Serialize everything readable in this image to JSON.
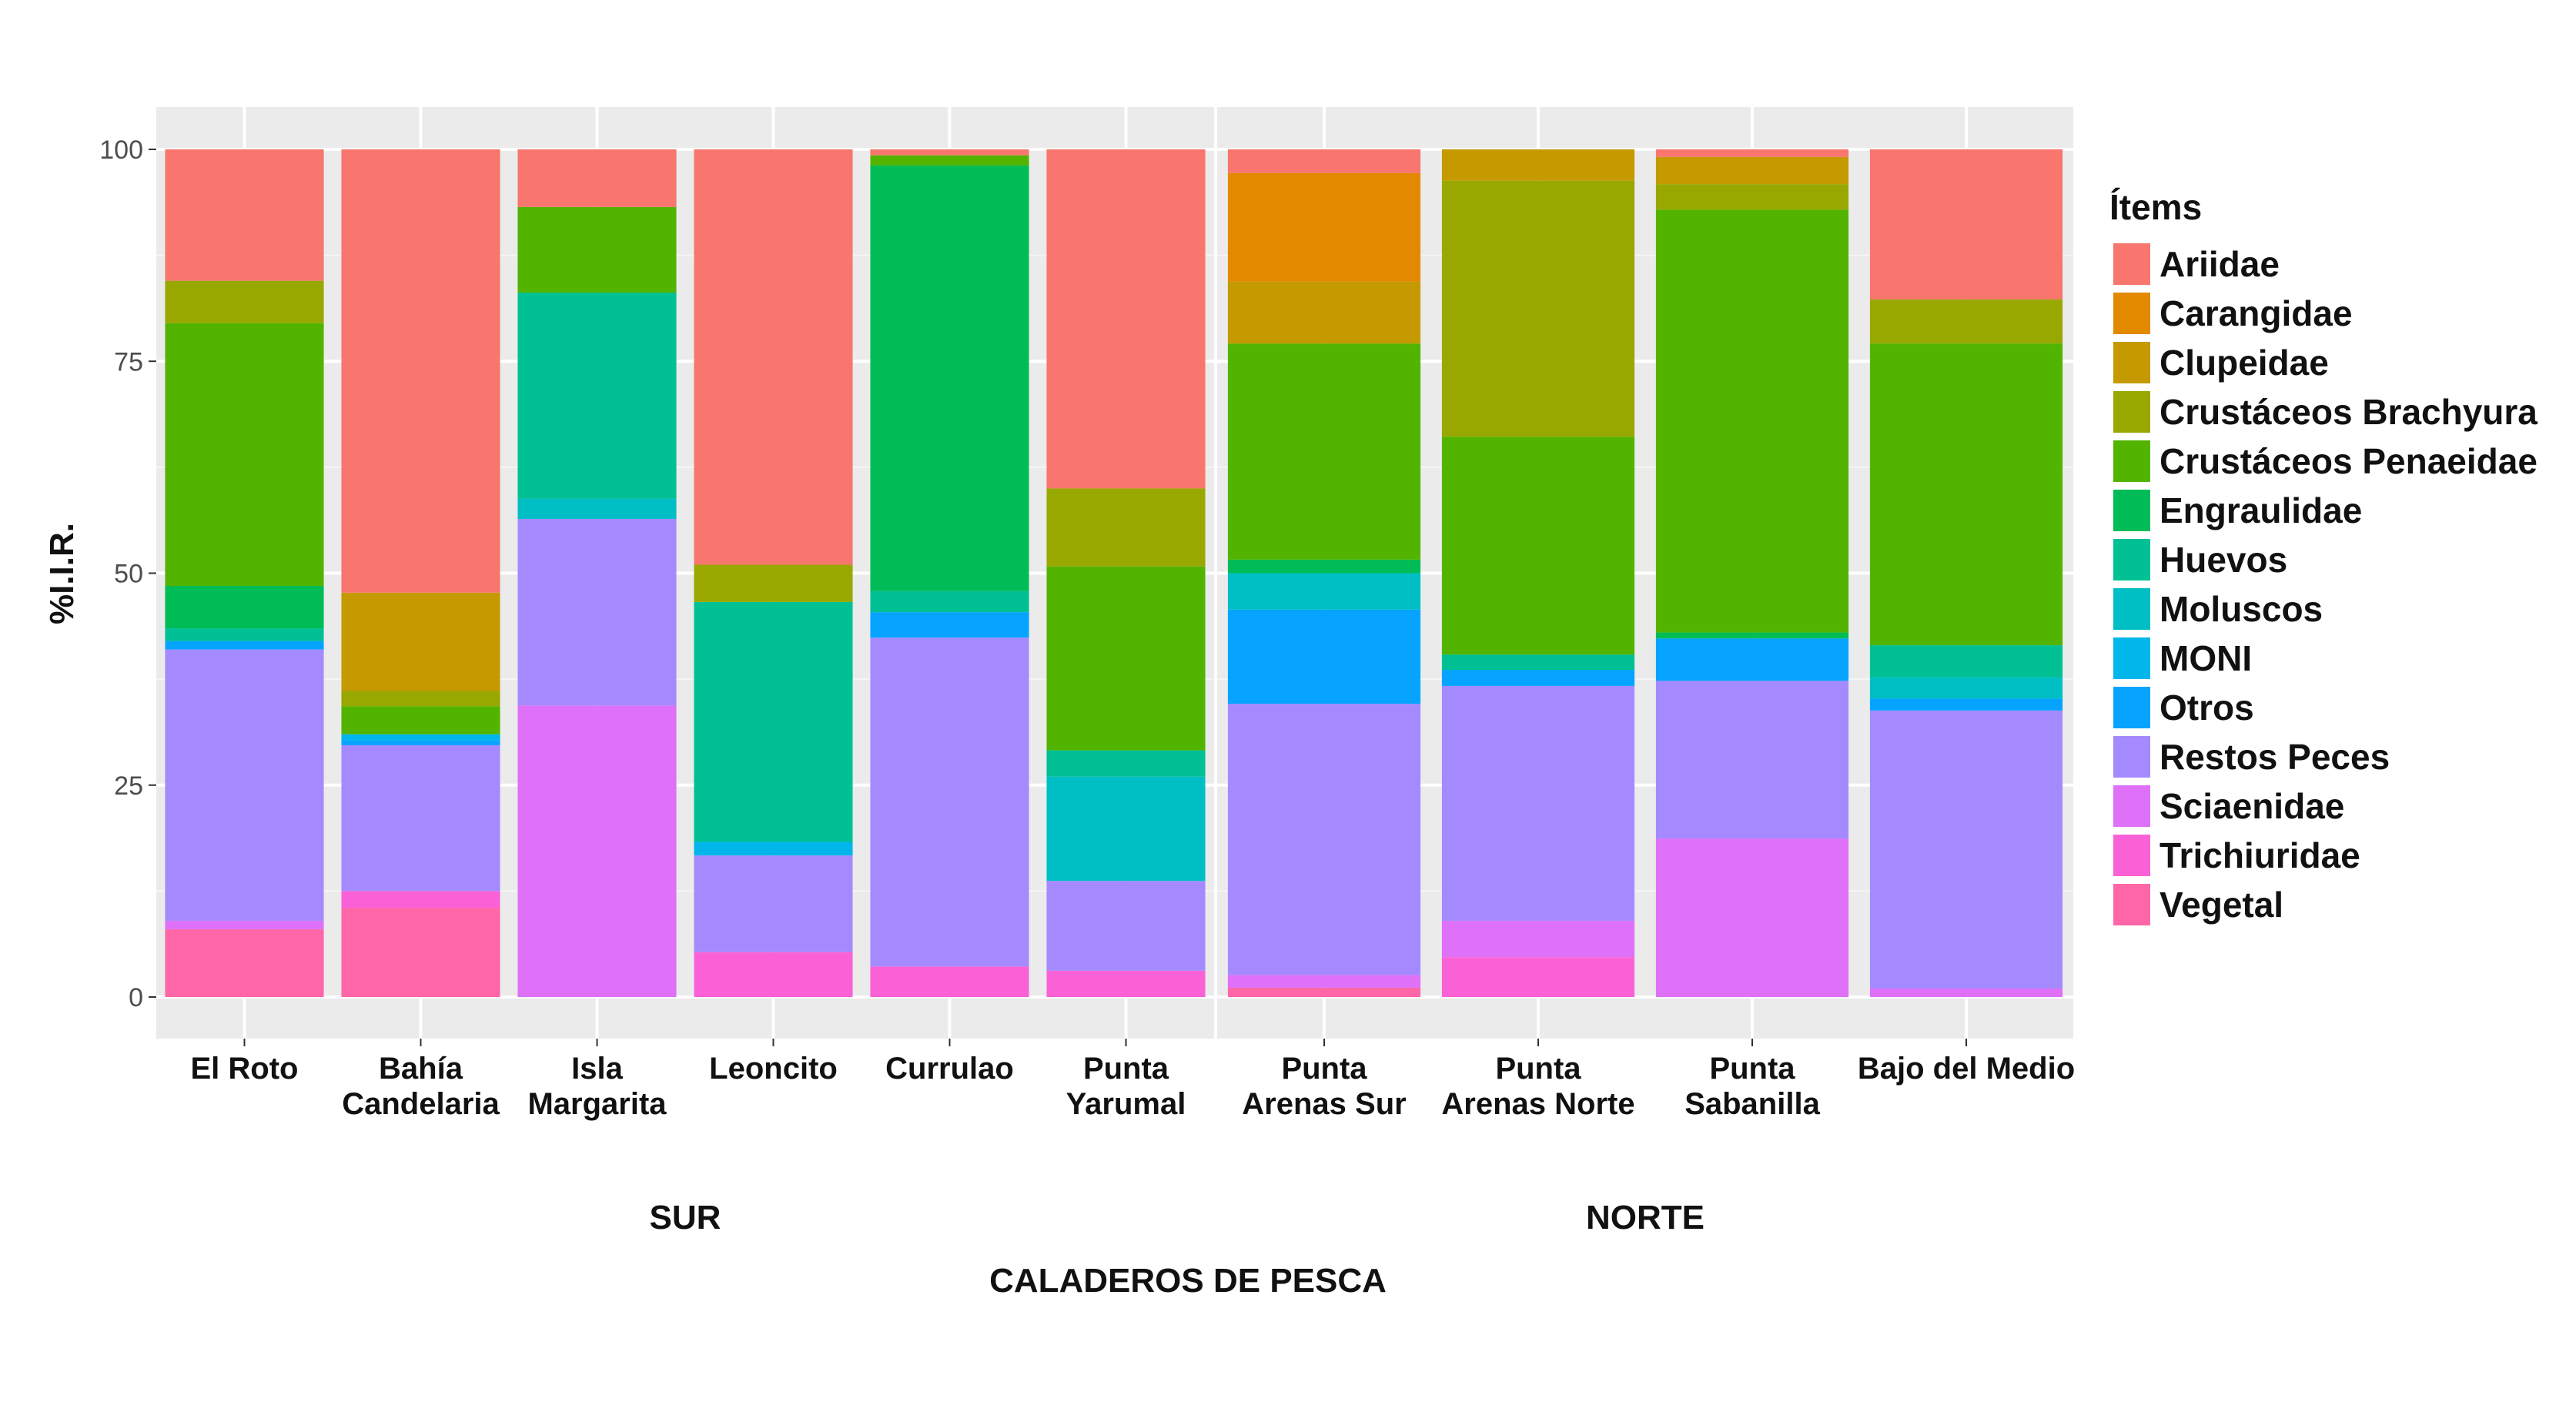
{
  "chart_data": {
    "type": "bar",
    "stacked": true,
    "xlabel": "CALADEROS DE PESCA",
    "ylabel": "%I.I.R.",
    "ylim": [
      0,
      100
    ],
    "yticks": [
      "0",
      "25",
      "50",
      "75",
      "100"
    ],
    "grid": true,
    "legend": {
      "title": "Ítems",
      "position": "right"
    },
    "items": [
      "Ariidae",
      "Carangidae",
      "Clupeidae",
      "Crustáceos Brachyura",
      "Crustáceos Penaeidae",
      "Engraulidae",
      "Huevos",
      "Moluscos",
      "MONI",
      "Otros",
      "Restos Peces",
      "Sciaenidae",
      "Trichiuridae",
      "Vegetal"
    ],
    "colors": [
      "#F8766D",
      "#E38900",
      "#C49A00",
      "#99A800",
      "#53B400",
      "#00BC56",
      "#00C094",
      "#00BFC4",
      "#00B6EB",
      "#06A4FF",
      "#A58AFF",
      "#DF70F8",
      "#FB61D7",
      "#FF66A8"
    ],
    "facets": [
      {
        "name": "SUR",
        "categories": [
          {
            "label": [
              "El Roto"
            ],
            "values": {
              "Vegetal": 8,
              "Sciaenidae": 1,
              "Restos Peces": 32,
              "Otros": 1,
              "Huevos": 1.5,
              "Engraulidae": 5,
              "Crustáceos Penaeidae": 31,
              "Crustáceos Brachyura": 5,
              "Ariidae": 15.5
            }
          },
          {
            "label": [
              "Bahía",
              "Candelaria"
            ],
            "values": {
              "Vegetal": 10.5,
              "Trichiuridae": 2,
              "Restos Peces": 17.2,
              "Otros": 0.6,
              "MONI": 0.7,
              "Crustáceos Penaeidae": 3.3,
              "Crustáceos Brachyura": 1.8,
              "Clupeidae": 11.6,
              "Ariidae": 52.3
            }
          },
          {
            "label": [
              "Isla",
              "Margarita"
            ],
            "values": {
              "Sciaenidae": 34.4,
              "Restos Peces": 22,
              "Moluscos": 2.4,
              "Huevos": 24.3,
              "Crustáceos Penaeidae": 10.1,
              "Ariidae": 6.8
            }
          },
          {
            "label": [
              "Leoncito"
            ],
            "values": {
              "Trichiuridae": 5.3,
              "Restos Peces": 11.4,
              "MONI": 1.6,
              "Huevos": 28.3,
              "Crustáceos Brachyura": 4.4,
              "Ariidae": 49
            }
          },
          {
            "label": [
              "Currulao"
            ],
            "values": {
              "Trichiuridae": 3.6,
              "Restos Peces": 38.8,
              "Otros": 3,
              "Huevos": 2.5,
              "Engraulidae": 50.2,
              "Crustáceos Penaeidae": 1.2,
              "Ariidae": 0.7
            }
          },
          {
            "label": [
              "Punta",
              "Yarumal"
            ],
            "values": {
              "Trichiuridae": 3.1,
              "Restos Peces": 10.6,
              "Moluscos": 12.3,
              "Huevos": 3.1,
              "Crustáceos Penaeidae": 21.7,
              "Crustáceos Brachyura": 9.2,
              "Ariidae": 40
            }
          }
        ]
      },
      {
        "name": "NORTE",
        "categories": [
          {
            "label": [
              "Punta",
              "Arenas Sur"
            ],
            "values": {
              "Vegetal": 1.1,
              "Sciaenidae": 1.5,
              "Restos Peces": 32,
              "Otros": 11.1,
              "Moluscos": 4.3,
              "Engraulidae": 1.6,
              "Crustáceos Penaeidae": 25.5,
              "Clupeidae": 7.3,
              "Carangidae": 12.8,
              "Ariidae": 2.8
            }
          },
          {
            "label": [
              "Punta",
              "Arenas Norte"
            ],
            "values": {
              "Trichiuridae": 4.7,
              "Sciaenidae": 4.3,
              "Restos Peces": 27.7,
              "Otros": 1.9,
              "Huevos": 1.8,
              "Crustáceos Penaeidae": 25.7,
              "Crustáceos Brachyura": 30.2,
              "Clupeidae": 3.7
            }
          },
          {
            "label": [
              "Punta",
              "Sabanilla"
            ],
            "values": {
              "Sciaenidae": 18.7,
              "Restos Peces": 18.6,
              "Otros": 5,
              "Engraulidae": 0.7,
              "Crustáceos Penaeidae": 49.9,
              "Crustáceos Brachyura": 3,
              "Clupeidae": 3.2,
              "Ariidae": 0.9
            }
          },
          {
            "label": [
              "Bajo del Medio"
            ],
            "values": {
              "Sciaenidae": 1,
              "Restos Peces": 32.8,
              "Otros": 1.4,
              "Moluscos": 2.5,
              "Huevos": 3.8,
              "Crustáceos Penaeidae": 35.6,
              "Crustáceos Brachyura": 5.2,
              "Ariidae": 17.7
            }
          }
        ]
      }
    ]
  }
}
